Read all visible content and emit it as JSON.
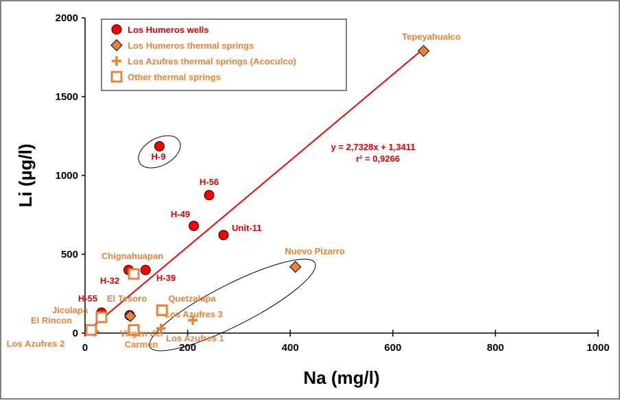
{
  "colors": {
    "wells": "#ff0000",
    "springs": "#e8833a",
    "label_red": "#e00000",
    "label_orange": "#e8833a",
    "trend": "#ff0000"
  },
  "chart_data": {
    "type": "scatter",
    "xlabel": "Na (mg/l)",
    "ylabel": "Li (µg/l)",
    "xlim": [
      0,
      1000
    ],
    "ylim": [
      0,
      2000
    ],
    "x_ticks": [
      "0",
      "200",
      "400",
      "600",
      "800",
      "1000"
    ],
    "y_ticks": [
      "0",
      "500",
      "1000",
      "1500",
      "2000"
    ],
    "x_tick_values": [
      0,
      200,
      400,
      600,
      800,
      1000
    ],
    "y_tick_values": [
      0,
      500,
      1000,
      1500,
      2000
    ],
    "grid": false,
    "legend_position": "top-left",
    "legend": [
      {
        "label": "Los Humeros wells",
        "marker": "circle"
      },
      {
        "label": "Los Humeros thermal springs",
        "marker": "diamond"
      },
      {
        "label": "Los Azufres thermal springs (Acoculco)",
        "marker": "plus"
      },
      {
        "label": "Other thermal springs",
        "marker": "square-open"
      }
    ],
    "series": [
      {
        "name": "Los Humeros wells",
        "marker": "circle",
        "points": [
          {
            "x": 145,
            "y": 1185,
            "label": "H-9"
          },
          {
            "x": 242,
            "y": 875,
            "label": "H-56"
          },
          {
            "x": 212,
            "y": 680,
            "label": "H-49"
          },
          {
            "x": 270,
            "y": 622,
            "label": "Unit-11"
          },
          {
            "x": 85,
            "y": 400,
            "label": "H-32"
          },
          {
            "x": 118,
            "y": 400,
            "label": "H-39"
          },
          {
            "x": 32,
            "y": 130,
            "label": "H-55"
          },
          {
            "x": 87,
            "y": 113,
            "label": ""
          }
        ]
      },
      {
        "name": "Los Humeros thermal springs",
        "marker": "diamond",
        "points": [
          {
            "x": 660,
            "y": 1790,
            "label": "Tepeyahualco"
          },
          {
            "x": 410,
            "y": 420,
            "label": "Nuevo Pizarro"
          },
          {
            "x": 88,
            "y": 108,
            "label": "El Tesoro"
          }
        ]
      },
      {
        "name": "Los Azufres thermal springs (Acoculco)",
        "marker": "plus",
        "points": [
          {
            "x": 210,
            "y": 82,
            "label": "Los Azufres 3"
          },
          {
            "x": 148,
            "y": 30,
            "label": "Los Azufres 1"
          },
          {
            "x": 18,
            "y": 10,
            "label": "Los Azufres 2"
          }
        ]
      },
      {
        "name": "Other thermal springs",
        "marker": "square-open",
        "points": [
          {
            "x": 95,
            "y": 375,
            "label": "Chignahuapan"
          },
          {
            "x": 150,
            "y": 145,
            "label": "Quetzalapa"
          },
          {
            "x": 32,
            "y": 100,
            "label": "Jicolapa"
          },
          {
            "x": 12,
            "y": 20,
            "label": "El Rincon"
          },
          {
            "x": 95,
            "y": 20,
            "label": "Virgen del Carmen"
          }
        ]
      }
    ],
    "trendline": {
      "from": [
        0,
        1.3411
      ],
      "to": [
        660,
        1804.99
      ],
      "equation": "y = 2,7328x + 1,3411",
      "r2": "r² = 0,9266"
    }
  }
}
